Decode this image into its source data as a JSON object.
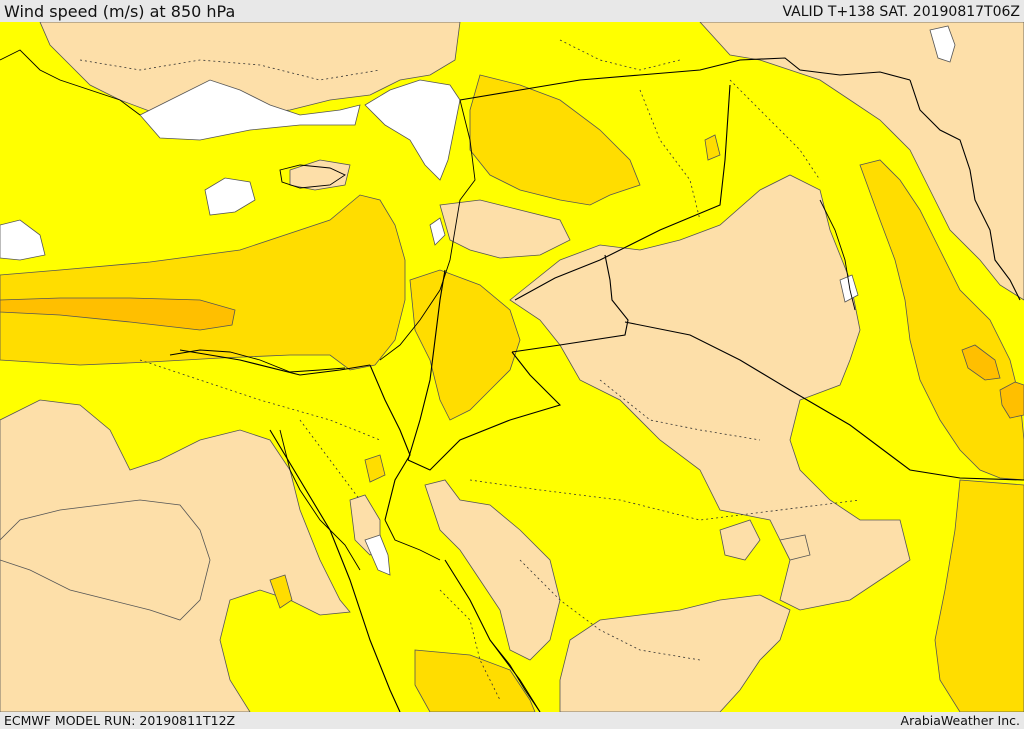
{
  "header": {
    "title": "Wind speed (m/s) at 850 hPa",
    "valid_time": "VALID T+138 SAT. 20190817T06Z"
  },
  "footer": {
    "model_run": "ECMWF MODEL RUN: 20190811T12Z",
    "credit": "ArabiaWeather Inc."
  },
  "map": {
    "variable": "wind speed",
    "units": "m/s",
    "pressure_level": "850 hPa",
    "colors": {
      "calm": "#fddfa9",
      "moderate": "#ffff00",
      "strong": "#ffdd00",
      "stronger": "#ffbf00",
      "water_low_wind": "#ffffff",
      "contour": "#444444",
      "border": "#000000"
    }
  }
}
